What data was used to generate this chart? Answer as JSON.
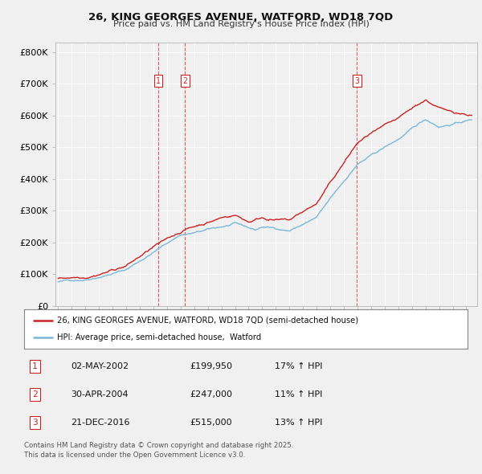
{
  "title_line1": "26, KING GEORGES AVENUE, WATFORD, WD18 7QD",
  "title_line2": "Price paid vs. HM Land Registry's House Price Index (HPI)",
  "ylabel_ticks": [
    "£0",
    "£100K",
    "£200K",
    "£300K",
    "£400K",
    "£500K",
    "£600K",
    "£700K",
    "£800K"
  ],
  "ytick_values": [
    0,
    100000,
    200000,
    300000,
    400000,
    500000,
    600000,
    700000,
    800000
  ],
  "ylim": [
    0,
    830000
  ],
  "xlim_start": 1994.8,
  "xlim_end": 2025.8,
  "hpi_color": "#7ab8d9",
  "price_color": "#cc2222",
  "vline_color": "#cc2222",
  "sale_dates": [
    2002.36,
    2004.33,
    2016.97
  ],
  "sale_labels": [
    "1",
    "2",
    "3"
  ],
  "legend_label_price": "26, KING GEORGES AVENUE, WATFORD, WD18 7QD (semi-detached house)",
  "legend_label_hpi": "HPI: Average price, semi-detached house,  Watford",
  "table_rows": [
    [
      "1",
      "02-MAY-2002",
      "£199,950",
      "17% ↑ HPI"
    ],
    [
      "2",
      "30-APR-2004",
      "£247,000",
      "11% ↑ HPI"
    ],
    [
      "3",
      "21-DEC-2016",
      "£515,000",
      "13% ↑ HPI"
    ]
  ],
  "footnote": "Contains HM Land Registry data © Crown copyright and database right 2025.\nThis data is licensed under the Open Government Licence v3.0.",
  "background_color": "#f0f0f0",
  "plot_bg_color": "#f0f0f0",
  "grid_color": "#ffffff"
}
